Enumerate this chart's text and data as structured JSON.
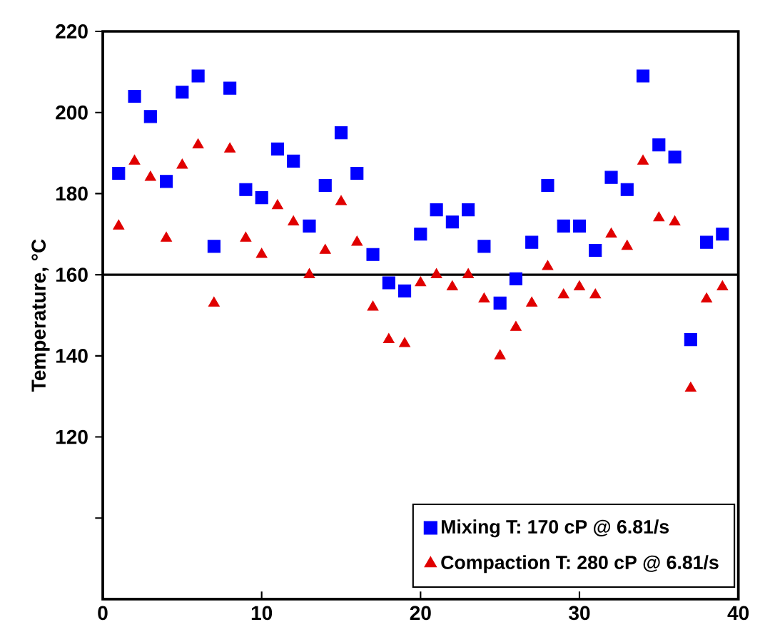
{
  "chart_data": {
    "type": "scatter",
    "ylabel": "Temperature, °C",
    "xlim": [
      0,
      40
    ],
    "xticks": [
      0,
      10,
      20,
      30,
      40
    ],
    "ylim": [
      80,
      220
    ],
    "yticks": [
      {
        "value": 100,
        "label": null
      },
      120,
      140,
      160,
      180,
      200,
      220
    ],
    "legend": "bottom right",
    "ref_lines": [
      {
        "axis": "y",
        "value": 160,
        "color": "#000000"
      }
    ],
    "x": [
      1,
      2,
      3,
      4,
      5,
      6,
      7,
      8,
      9,
      10,
      11,
      12,
      13,
      14,
      15,
      16,
      17,
      18,
      19,
      20,
      21,
      22,
      23,
      24,
      25,
      26,
      27,
      28,
      29,
      30,
      31,
      32,
      33,
      34,
      35,
      36,
      37,
      38,
      39
    ],
    "series": [
      {
        "name": "Mixing T: 170 cP @ 6.81/s",
        "color": "#0000ff",
        "marker": "square",
        "values": [
          185,
          204,
          199,
          183,
          205,
          209,
          167,
          206,
          181,
          179,
          191,
          188,
          172,
          182,
          195,
          185,
          165,
          158,
          156,
          170,
          176,
          173,
          176,
          167,
          153,
          159,
          168,
          182,
          172,
          172,
          166,
          184,
          181,
          209,
          192,
          189,
          144,
          168,
          170
        ]
      },
      {
        "name": "Compaction T: 280 cP @ 6.81/s",
        "color": "#e00000",
        "marker": "triangle",
        "values": [
          172,
          188,
          184,
          169,
          187,
          192,
          153,
          191,
          169,
          165,
          177,
          173,
          160,
          166,
          178,
          168,
          152,
          144,
          143,
          158,
          160,
          157,
          160,
          154,
          140,
          147,
          153,
          162,
          155,
          157,
          155,
          170,
          167,
          188,
          174,
          173,
          132,
          154,
          157
        ]
      }
    ]
  }
}
